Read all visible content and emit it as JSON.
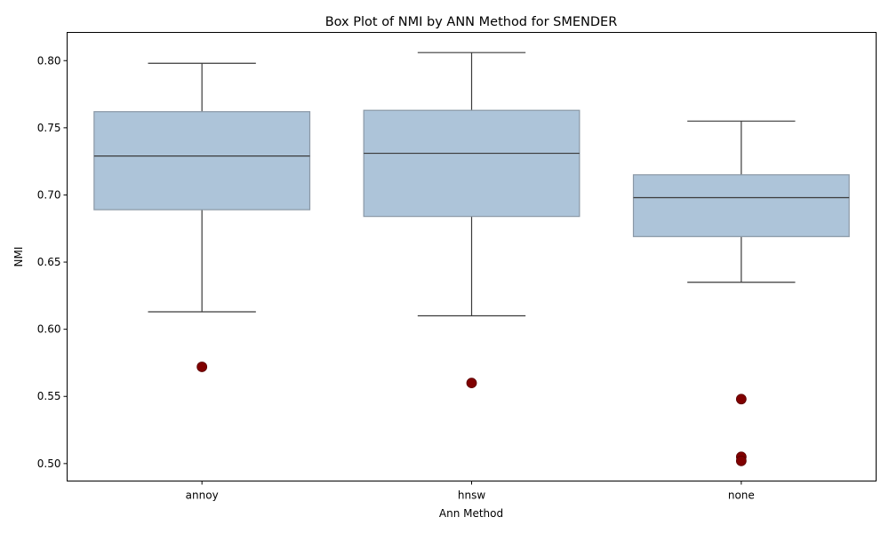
{
  "chart_data": {
    "type": "box",
    "title": "Box Plot of NMI by ANN Method for SMENDER",
    "xlabel": "Ann Method",
    "ylabel": "NMI",
    "categories": [
      "annoy",
      "hnsw",
      "none"
    ],
    "ylim": [
      0.487,
      0.821
    ],
    "yticks": [
      0.5,
      0.55,
      0.6,
      0.65,
      0.7,
      0.75,
      0.8
    ],
    "ytick_labels": [
      "0.50",
      "0.55",
      "0.60",
      "0.65",
      "0.70",
      "0.75",
      "0.80"
    ],
    "boxes": [
      {
        "category": "annoy",
        "whisker_low": 0.613,
        "q1": 0.689,
        "median": 0.729,
        "q3": 0.762,
        "whisker_high": 0.798,
        "outliers": [
          0.572
        ]
      },
      {
        "category": "hnsw",
        "whisker_low": 0.61,
        "q1": 0.684,
        "median": 0.731,
        "q3": 0.763,
        "whisker_high": 0.806,
        "outliers": [
          0.56
        ]
      },
      {
        "category": "none",
        "whisker_low": 0.635,
        "q1": 0.669,
        "median": 0.698,
        "q3": 0.715,
        "whisker_high": 0.755,
        "outliers": [
          0.548,
          0.505,
          0.502
        ]
      }
    ],
    "box_color": "#adc4d9",
    "box_edge_color": "#8a98a6",
    "line_color": "#3a3a3a",
    "outlier_color": "#800000",
    "grid": false,
    "legend": "none"
  }
}
